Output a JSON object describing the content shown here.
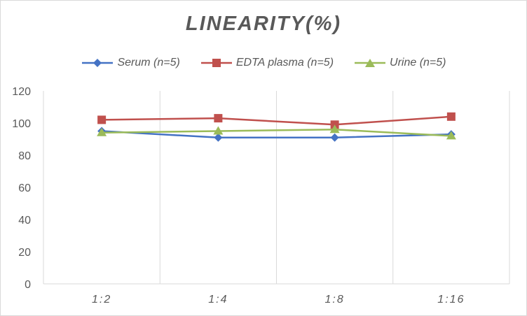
{
  "chart_data": {
    "type": "line",
    "title": "LINEARITY(%)",
    "xlabel": "",
    "ylabel": "",
    "categories": [
      "1:2",
      "1:4",
      "1:8",
      "1:16"
    ],
    "ylim": [
      0,
      120
    ],
    "yticks": [
      0,
      20,
      40,
      60,
      80,
      100,
      120
    ],
    "grid": "vertical",
    "legend_position": "top",
    "series": [
      {
        "name": "Serum (n=5)",
        "values": [
          95,
          91,
          91,
          93
        ],
        "color": "#4472c4",
        "marker": "diamond"
      },
      {
        "name": "EDTA plasma (n=5)",
        "values": [
          102,
          103,
          99,
          104
        ],
        "color": "#c0504d",
        "marker": "square"
      },
      {
        "name": "Urine (n=5)",
        "values": [
          94,
          95,
          96,
          92
        ],
        "color": "#9bbb59",
        "marker": "triangle"
      }
    ]
  }
}
